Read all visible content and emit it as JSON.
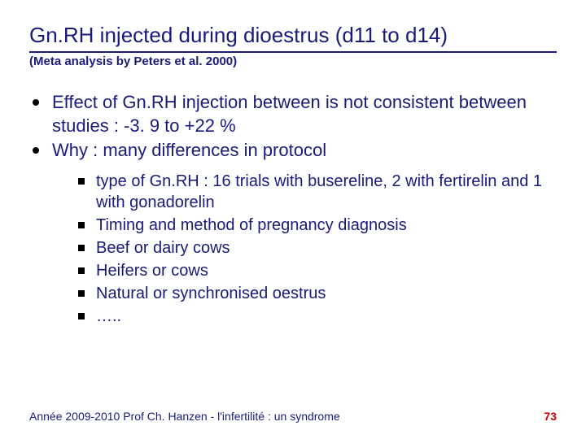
{
  "colors": {
    "text_primary": "#1a1a7a",
    "page_number": "#cc0000",
    "bullet": "#000000",
    "background": "#ffffff",
    "underline": "#1a1a7a"
  },
  "typography": {
    "title_fontsize": 26,
    "subtitle_fontsize": 15,
    "main_fontsize": 22,
    "sub_fontsize": 20,
    "footer_fontsize": 14
  },
  "title": "Gn.RH injected during dioestrus (d11 to d14)",
  "subtitle": "(Meta analysis by Peters et al. 2000)",
  "main_items": [
    "Effect of Gn.RH injection between is not consistent between studies : -3. 9 to +22 %",
    "Why : many differences in protocol"
  ],
  "sub_items": [
    "type of Gn.RH : 16 trials with busereline, 2 with fertirelin and 1 with gonadorelin",
    "Timing and method of pregnancy diagnosis",
    "Beef or dairy cows",
    "Heifers or cows",
    "Natural or synchronised oestrus",
    "….."
  ],
  "footer_text": "Année 2009-2010 Prof Ch. Hanzen - l'infertilité : un syndrome",
  "page_number": "73"
}
